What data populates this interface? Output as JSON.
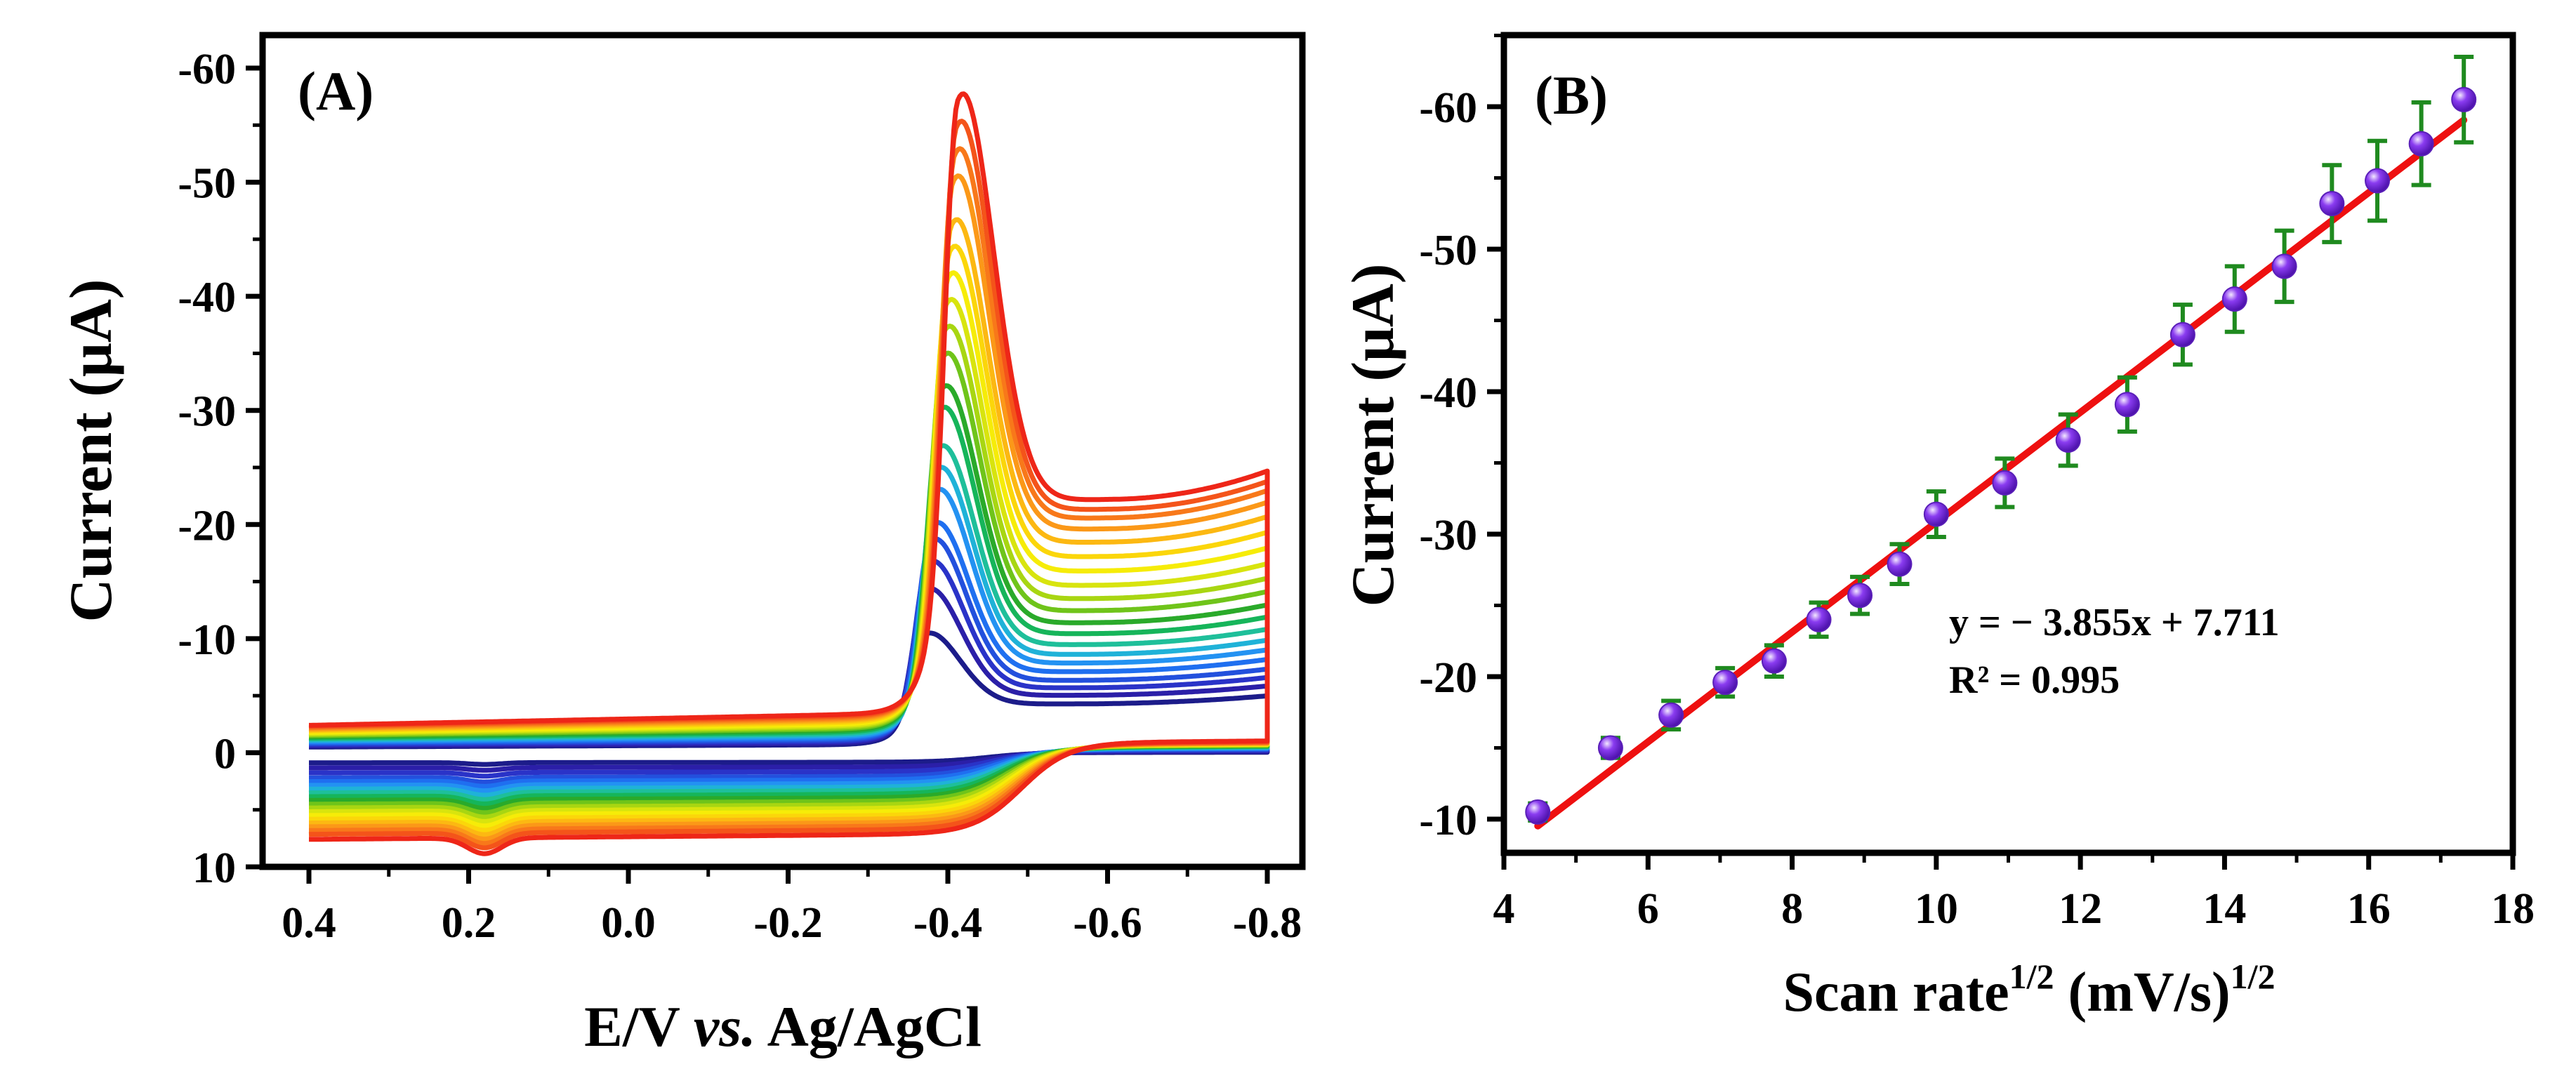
{
  "chart_data": [
    {
      "panel": "(A)",
      "type": "line",
      "title": "",
      "xlabel": "E/V ",
      "xlabel_italic": "vs.",
      "xlabel_tail": " Ag/AgCl",
      "ylabel": "Current (μA)",
      "xlim": [
        0.4,
        -0.8
      ],
      "ylim": [
        10,
        -65
      ],
      "xticks": [
        0.4,
        0.2,
        0.0,
        -0.2,
        -0.4,
        -0.6,
        -0.8
      ],
      "xtick_labels": [
        "0.4",
        "0.2",
        "0.0",
        "-0.2",
        "-0.4",
        "-0.6",
        "-0.8"
      ],
      "yticks": [
        10,
        0,
        -10,
        -20,
        -30,
        -40,
        -50,
        -60
      ],
      "ytick_labels": [
        "10",
        "0",
        "-10",
        "-20",
        "-30",
        "-40",
        "-50",
        "-60"
      ],
      "series": [
        {
          "name": "cv-1",
          "peak_potential": -0.37,
          "peak_current": -11.0,
          "tail_current": -4.0,
          "base_current": -0.5,
          "cathodic_current": 0.8,
          "color": "#1c1c8a"
        },
        {
          "name": "cv-2",
          "peak_potential": -0.372,
          "peak_current": -15.0,
          "tail_current": -4.7,
          "base_current": -0.6,
          "cathodic_current": 1.2,
          "color": "#2b1fa8"
        },
        {
          "name": "cv-3",
          "peak_potential": -0.375,
          "peak_current": -17.5,
          "tail_current": -5.3,
          "base_current": -0.7,
          "cathodic_current": 1.6,
          "color": "#2a33c8"
        },
        {
          "name": "cv-4",
          "peak_potential": -0.378,
          "peak_current": -19.5,
          "tail_current": -5.9,
          "base_current": -0.8,
          "cathodic_current": 2.0,
          "color": "#2350dd"
        },
        {
          "name": "cv-5",
          "peak_potential": -0.381,
          "peak_current": -21.0,
          "tail_current": -6.6,
          "base_current": -0.9,
          "cathodic_current": 2.3,
          "color": "#1f6ff0"
        },
        {
          "name": "cv-6",
          "peak_potential": -0.384,
          "peak_current": -24.0,
          "tail_current": -7.3,
          "base_current": -1.0,
          "cathodic_current": 2.6,
          "color": "#2392f2"
        },
        {
          "name": "cv-7",
          "peak_potential": -0.386,
          "peak_current": -26.0,
          "tail_current": -8.0,
          "base_current": -1.1,
          "cathodic_current": 2.9,
          "color": "#1fb2d8"
        },
        {
          "name": "cv-8",
          "peak_potential": -0.388,
          "peak_current": -28.0,
          "tail_current": -8.8,
          "base_current": -1.2,
          "cathodic_current": 3.2,
          "color": "#1ebf9a"
        },
        {
          "name": "cv-9",
          "peak_potential": -0.39,
          "peak_current": -31.5,
          "tail_current": -9.7,
          "base_current": -1.3,
          "cathodic_current": 3.5,
          "color": "#16b55a"
        },
        {
          "name": "cv-10",
          "peak_potential": -0.392,
          "peak_current": -33.5,
          "tail_current": -10.6,
          "base_current": -1.4,
          "cathodic_current": 3.8,
          "color": "#2aaa2a"
        },
        {
          "name": "cv-11",
          "peak_potential": -0.394,
          "peak_current": -36.5,
          "tail_current": -11.6,
          "base_current": -1.5,
          "cathodic_current": 4.1,
          "color": "#6fc41a"
        },
        {
          "name": "cv-12",
          "peak_potential": -0.396,
          "peak_current": -39.0,
          "tail_current": -12.6,
          "base_current": -1.6,
          "cathodic_current": 4.4,
          "color": "#a8d612"
        },
        {
          "name": "cv-13",
          "peak_potential": -0.398,
          "peak_current": -41.5,
          "tail_current": -13.7,
          "base_current": -1.7,
          "cathodic_current": 4.7,
          "color": "#d8e40e"
        },
        {
          "name": "cv-14",
          "peak_potential": -0.4,
          "peak_current": -44.0,
          "tail_current": -14.9,
          "base_current": -1.8,
          "cathodic_current": 5.0,
          "color": "#f6ec08"
        },
        {
          "name": "cv-15",
          "peak_potential": -0.402,
          "peak_current": -46.5,
          "tail_current": -16.1,
          "base_current": -1.9,
          "cathodic_current": 5.3,
          "color": "#fbd60a"
        },
        {
          "name": "cv-16",
          "peak_potential": -0.404,
          "peak_current": -49.0,
          "tail_current": -17.3,
          "base_current": -2.0,
          "cathodic_current": 5.6,
          "color": "#fcb812"
        },
        {
          "name": "cv-17",
          "peak_potential": -0.406,
          "peak_current": -53.0,
          "tail_current": -18.4,
          "base_current": -2.1,
          "cathodic_current": 5.9,
          "color": "#fb9818"
        },
        {
          "name": "cv-18",
          "peak_potential": -0.408,
          "peak_current": -55.5,
          "tail_current": -19.3,
          "base_current": -2.2,
          "cathodic_current": 6.2,
          "color": "#f8781a"
        },
        {
          "name": "cv-19",
          "peak_potential": -0.41,
          "peak_current": -58.0,
          "tail_current": -20.0,
          "base_current": -2.3,
          "cathodic_current": 6.5,
          "color": "#f4541a"
        },
        {
          "name": "cv-20",
          "peak_potential": -0.412,
          "peak_current": -60.5,
          "tail_current": -20.8,
          "base_current": -2.4,
          "cathodic_current": 6.9,
          "color": "#ee2618"
        }
      ]
    },
    {
      "panel": "(B)",
      "type": "scatter",
      "title": "",
      "xlabel": "Scan rate",
      "xlabel_sup": "1/2",
      "xlabel_tail": " (mV/s)",
      "xlabel_tail_sup": "1/2",
      "ylabel": "Current (μA)",
      "xlim": [
        4,
        18
      ],
      "ylim": [
        -8,
        -65
      ],
      "xticks": [
        4,
        6,
        8,
        10,
        12,
        14,
        16,
        18
      ],
      "xtick_labels": [
        "4",
        "6",
        "8",
        "10",
        "12",
        "14",
        "16",
        "18"
      ],
      "yticks": [
        -10,
        -20,
        -30,
        -40,
        -50,
        -60
      ],
      "ytick_labels": [
        "-10",
        "-20",
        "-30",
        "-40",
        "-50",
        "-60"
      ],
      "x": [
        4.47,
        5.48,
        6.32,
        7.07,
        7.75,
        8.37,
        8.94,
        9.49,
        10.0,
        10.95,
        11.83,
        12.65,
        13.42,
        14.14,
        14.83,
        15.49,
        16.12,
        16.73,
        17.32
      ],
      "y": [
        -10.5,
        -15.0,
        -17.3,
        -19.6,
        -21.1,
        -24.0,
        -25.7,
        -27.9,
        -31.4,
        -33.6,
        -36.6,
        -39.1,
        -44.0,
        -46.5,
        -48.8,
        -53.2,
        -54.8,
        -57.4,
        -60.5
      ],
      "yerr": [
        0.6,
        0.7,
        1.0,
        1.0,
        1.1,
        1.2,
        1.3,
        1.4,
        1.6,
        1.7,
        1.8,
        1.9,
        2.1,
        2.3,
        2.5,
        2.7,
        2.8,
        2.9,
        3.0
      ],
      "fit": {
        "slope": -3.855,
        "intercept": 7.711,
        "x_range": [
          4.47,
          17.32
        ]
      },
      "equation": "y = − 3.855x + 7.711",
      "r_squared": "R² = 0.995",
      "marker_color": "#8a3cf0",
      "errorbar_color": "#1f8a1f",
      "fit_color": "#ee1010",
      "annotation_color": "#1f9a1f"
    }
  ]
}
